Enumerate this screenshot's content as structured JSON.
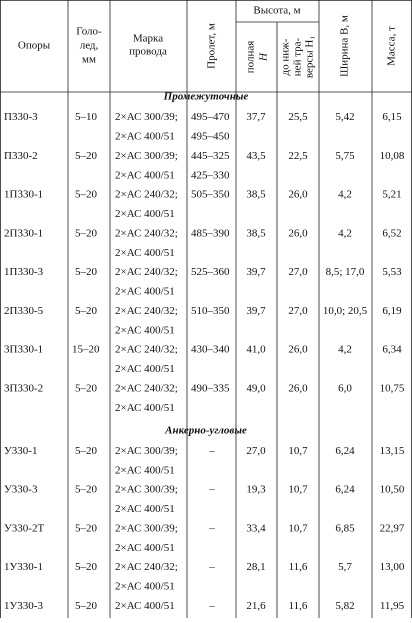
{
  "table": {
    "header": {
      "support": "Опоры",
      "ice": [
        "Голо-",
        "лед,",
        "мм"
      ],
      "wire": [
        "Марка",
        "провода"
      ],
      "span": "Пролет, м",
      "height": "Высота, м",
      "height_full": [
        "полная",
        "H"
      ],
      "height_lower": [
        "до ниж-",
        "ней тра-",
        "версы H₁"
      ],
      "width": "Ширина B, м",
      "mass": "Масса, т"
    },
    "sections": [
      {
        "title": "Промежуточные",
        "rows": [
          {
            "support": "П330-3",
            "ice": "5–10",
            "wire": [
              "2×АС 300/39;",
              "2×АС 400/51"
            ],
            "span": [
              "495–470",
              "495–450"
            ],
            "height_full": "37,7",
            "height_lower": "25,5",
            "width": "5,42",
            "mass": "6,15"
          },
          {
            "support": "П330-2",
            "ice": "5–20",
            "wire": [
              "2×АС 300/39;",
              "2×АС 400/51"
            ],
            "span": [
              "445–325",
              "425–330"
            ],
            "height_full": "43,5",
            "height_lower": "22,5",
            "width": "5,75",
            "mass": "10,08"
          },
          {
            "support": "1П330-1",
            "ice": "5–20",
            "wire": [
              "2×АС 240/32;",
              "2×АС 400/51"
            ],
            "span": [
              "505–350"
            ],
            "height_full": "38,5",
            "height_lower": "26,0",
            "width": "4,2",
            "mass": "5,21"
          },
          {
            "support": "2П330-1",
            "ice": "5–20",
            "wire": [
              "2×АС 240/32;",
              "2×АС 400/51"
            ],
            "span": [
              "485–390"
            ],
            "height_full": "38,5",
            "height_lower": "26,0",
            "width": "4,2",
            "mass": "6,52"
          },
          {
            "support": "1П330-3",
            "ice": "5–20",
            "wire": [
              "2×АС 240/32;",
              "2×АС 400/51"
            ],
            "span": [
              "525–360"
            ],
            "height_full": "39,7",
            "height_lower": "27,0",
            "width": "8,5; 17,0",
            "mass": "5,53"
          },
          {
            "support": "2П330-5",
            "ice": "5–20",
            "wire": [
              "2×АС 240/32;",
              "2×АС 400/51"
            ],
            "span": [
              "510–350"
            ],
            "height_full": "39,7",
            "height_lower": "27,0",
            "width": "10,0; 20,5",
            "mass": "6,19"
          },
          {
            "support": "3П330-1",
            "ice": "15–20",
            "wire": [
              "2×АС 240/32;",
              "2×АС 400/51"
            ],
            "span": [
              "430–340"
            ],
            "height_full": "41,0",
            "height_lower": "26,0",
            "width": "4,2",
            "mass": "6,34"
          },
          {
            "support": "3П330-2",
            "ice": "5–20",
            "wire": [
              "2×АС 240/32;",
              "2×АС 400/51"
            ],
            "span": [
              "490–335"
            ],
            "height_full": "49,0",
            "height_lower": "26,0",
            "width": "6,0",
            "mass": "10,75"
          }
        ]
      },
      {
        "title": "Анкерно-угловые",
        "rows": [
          {
            "support": "У330-1",
            "ice": "5–20",
            "wire": [
              "2×АС 300/39;",
              "2×АС 400/51"
            ],
            "span": [
              "–"
            ],
            "height_full": "27,0",
            "height_lower": "10,7",
            "width": "6,24",
            "mass": "13,15"
          },
          {
            "support": "У330-3",
            "ice": "5–20",
            "wire": [
              "2×АС 300/39;",
              "2×АС 400/51"
            ],
            "span": [
              "–"
            ],
            "height_full": "19,3",
            "height_lower": "10,7",
            "width": "6,24",
            "mass": "10,50"
          },
          {
            "support": "У330-2Т",
            "ice": "5–20",
            "wire": [
              "2×АС 300/39;",
              "2×АС 400/51"
            ],
            "span": [
              "–"
            ],
            "height_full": "33,4",
            "height_lower": "10,7",
            "width": "6,85",
            "mass": "22,97"
          },
          {
            "support": "1У330-1",
            "ice": "5–20",
            "wire": [
              "2×АС 240/32;",
              "2×АС 400/51"
            ],
            "span": [
              "–"
            ],
            "height_full": "28,1",
            "height_lower": "11,6",
            "width": "5,7",
            "mass": "13,00"
          },
          {
            "support": "1У330-3",
            "ice": "5–20",
            "wire": [
              "2×АС 400/51"
            ],
            "span": [
              "–"
            ],
            "height_full": "21,6",
            "height_lower": "11,6",
            "width": "5,82",
            "mass": "11,95"
          }
        ]
      }
    ]
  }
}
